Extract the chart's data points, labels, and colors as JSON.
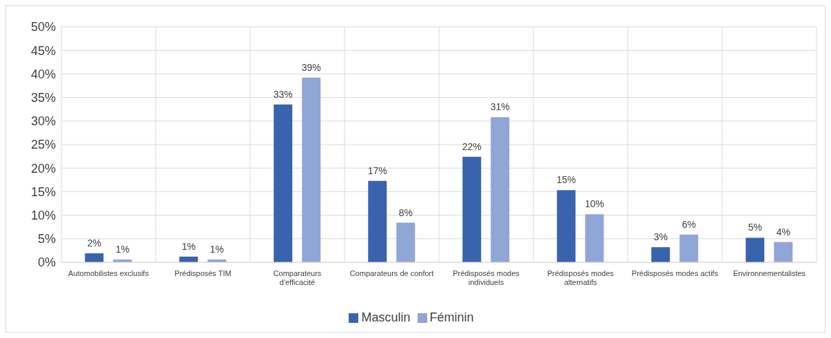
{
  "chart_data": {
    "type": "bar",
    "categories": [
      "Automobilistes exclusifs",
      "Prédisposés TIM",
      "Comparateurs d'efficacité",
      "Comparateurs de confort",
      "Prédisposés modes individuels",
      "Prédisposés modes alternatifs",
      "Prédisposés modes actifs",
      "Environnementalistes"
    ],
    "series": [
      {
        "name": "Masculin",
        "color": "#3a63ad",
        "values": [
          1.9,
          1.2,
          33.5,
          17.3,
          22.4,
          15.3,
          3.2,
          5.2
        ],
        "value_labels": [
          "2%",
          "1%",
          "33%",
          "17%",
          "22%",
          "15%",
          "3%",
          "5%"
        ]
      },
      {
        "name": "Féminin",
        "color": "#8fa6d6",
        "values": [
          0.6,
          0.6,
          39.2,
          8.4,
          30.8,
          10.2,
          5.9,
          4.3
        ],
        "value_labels": [
          "1%",
          "1%",
          "39%",
          "8%",
          "31%",
          "10%",
          "6%",
          "4%"
        ]
      }
    ],
    "ylim": [
      0,
      50
    ],
    "yticks": [
      {
        "value": 0,
        "label": "0%"
      },
      {
        "value": 5,
        "label": "5%"
      },
      {
        "value": 10,
        "label": "10%"
      },
      {
        "value": 15,
        "label": "15%"
      },
      {
        "value": 20,
        "label": "20%"
      },
      {
        "value": 25,
        "label": "25%"
      },
      {
        "value": 30,
        "label": "30%"
      },
      {
        "value": 35,
        "label": "35%"
      },
      {
        "value": 40,
        "label": "40%"
      },
      {
        "value": 45,
        "label": "45%"
      },
      {
        "value": 50,
        "label": "50%"
      }
    ],
    "grid": true,
    "legend": "bottom"
  }
}
